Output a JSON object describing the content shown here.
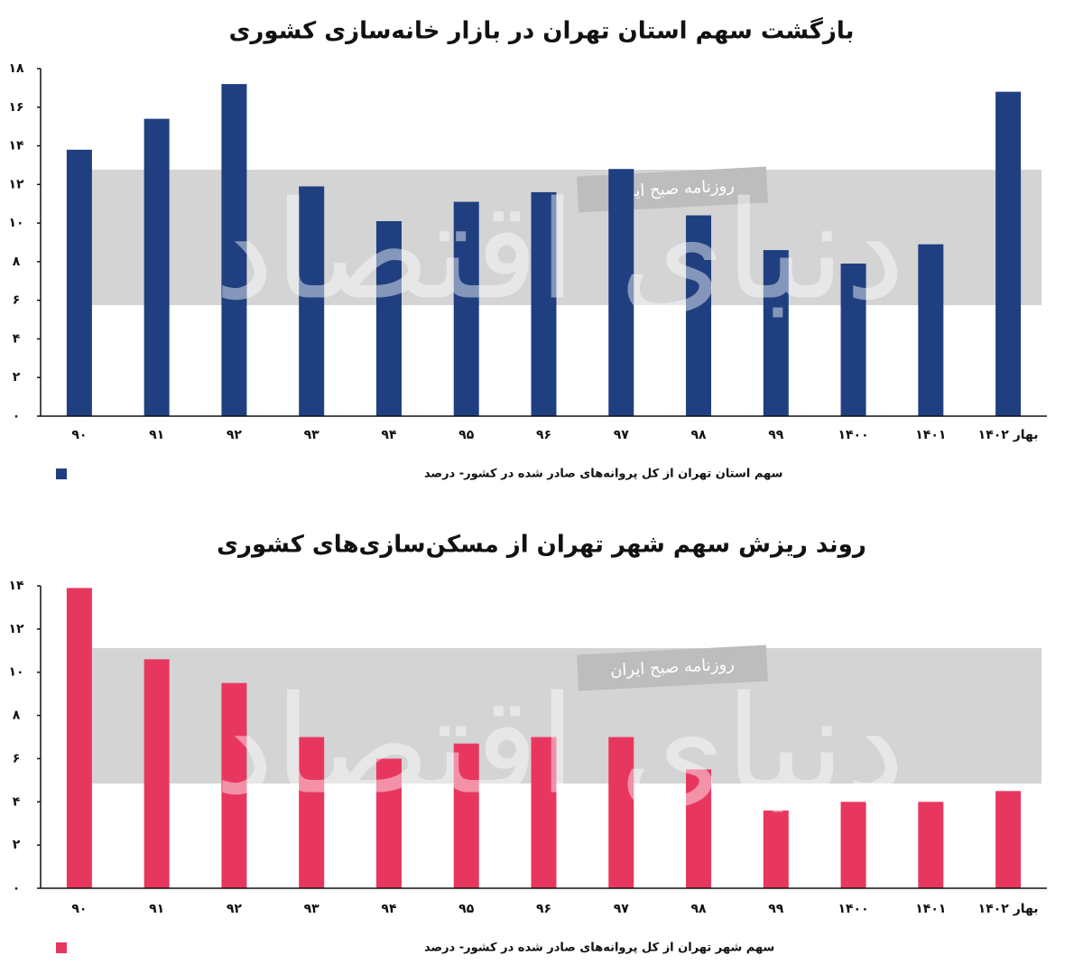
{
  "chart_data": [
    {
      "type": "bar",
      "title": "بازگشت سهم استان تهران در بازار خانه‌سازی کشوری",
      "watermark": "روزنامه صبح ایران",
      "logo": "دنیای اقتصاد",
      "categories": [
        "۹۰",
        "۹۱",
        "۹۲",
        "۹۳",
        "۹۴",
        "۹۵",
        "۹۶",
        "۹۷",
        "۹۸",
        "۹۹",
        "۱۴۰۰",
        "۱۴۰۱",
        "بهار ۱۴۰۲"
      ],
      "series": [
        {
          "name": "سهم استان تهران از کل پروانه‌های صادر شده در کشور- درصد",
          "color": "#1f3f80",
          "values": [
            13.8,
            15.4,
            17.2,
            11.9,
            10.1,
            11.1,
            11.6,
            12.8,
            10.4,
            8.6,
            7.9,
            8.9,
            16.8
          ]
        }
      ],
      "ylim": [
        0,
        18
      ],
      "yticks": [
        {
          "value": 0,
          "label": "۰"
        },
        {
          "value": 2,
          "label": "۲"
        },
        {
          "value": 4,
          "label": "۴"
        },
        {
          "value": 6,
          "label": "۶"
        },
        {
          "value": 8,
          "label": "۸"
        },
        {
          "value": 10,
          "label": "۱۰"
        },
        {
          "value": 12,
          "label": "۱۲"
        },
        {
          "value": 14,
          "label": "۱۴"
        },
        {
          "value": 16,
          "label": "۱۶"
        },
        {
          "value": 18,
          "label": "۱۸"
        }
      ],
      "grid": false
    },
    {
      "type": "bar",
      "title": "روند ریزش سهم شهر تهران از مسکن‌سازی‌های کشوری",
      "watermark": "روزنامه صبح ایران",
      "logo": "دنیای اقتصاد",
      "categories": [
        "۹۰",
        "۹۱",
        "۹۲",
        "۹۳",
        "۹۴",
        "۹۵",
        "۹۶",
        "۹۷",
        "۹۸",
        "۹۹",
        "۱۴۰۰",
        "۱۴۰۱",
        "بهار ۱۴۰۲"
      ],
      "series": [
        {
          "name": "سهم شهر تهران از کل پروانه‌های صادر شده در کشور- درصد",
          "color": "#e8375f",
          "values": [
            13.9,
            10.6,
            9.5,
            7.0,
            6.0,
            6.7,
            7.0,
            7.0,
            5.5,
            3.6,
            4.0,
            4.0,
            4.5
          ]
        }
      ],
      "ylim": [
        0,
        14
      ],
      "yticks": [
        {
          "value": 0,
          "label": "۰"
        },
        {
          "value": 2,
          "label": "۲"
        },
        {
          "value": 4,
          "label": "۴"
        },
        {
          "value": 6,
          "label": "۶"
        },
        {
          "value": 8,
          "label": "۸"
        },
        {
          "value": 10,
          "label": "۱۰"
        },
        {
          "value": 12,
          "label": "۱۲"
        },
        {
          "value": 14,
          "label": "۱۴"
        }
      ],
      "grid": false
    }
  ]
}
